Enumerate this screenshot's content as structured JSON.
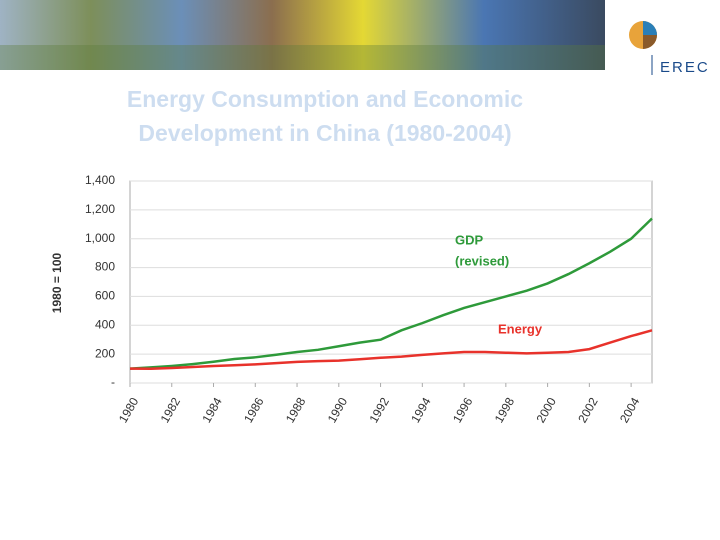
{
  "logo": "EREC",
  "chart_data": {
    "type": "line",
    "title_lines": [
      "Energy Consumption and Economic",
      "Development  in China (1980-2004)"
    ],
    "y_axis_label": "1980 = 100",
    "x": [
      1980,
      1981,
      1982,
      1983,
      1984,
      1985,
      1986,
      1987,
      1988,
      1989,
      1990,
      1991,
      1992,
      1993,
      1994,
      1995,
      1996,
      1997,
      1998,
      1999,
      2000,
      2001,
      2002,
      2003,
      2004,
      2005
    ],
    "series": [
      {
        "name": "GDP (revised)",
        "label_lines": [
          "GDP",
          "(revised)"
        ],
        "color": "#2e9a3a",
        "values": [
          100,
          108,
          118,
          131,
          147,
          166,
          178,
          196,
          215,
          230,
          255,
          280,
          300,
          365,
          415,
          470,
          520,
          560,
          600,
          640,
          690,
          755,
          830,
          910,
          1000,
          1140
        ]
      },
      {
        "name": "Energy",
        "label_lines": [
          "Energy"
        ],
        "color": "#e8322b",
        "values": [
          100,
          99,
          104,
          111,
          118,
          123,
          129,
          138,
          146,
          152,
          155,
          165,
          175,
          183,
          195,
          205,
          215,
          215,
          210,
          205,
          210,
          215,
          235,
          280,
          325,
          365
        ]
      }
    ],
    "xlim": [
      1980,
      2005
    ],
    "xticks": [
      1980,
      1982,
      1984,
      1986,
      1988,
      1990,
      1992,
      1994,
      1996,
      1998,
      2000,
      2002,
      2004
    ],
    "ylim": [
      0,
      1400
    ],
    "yticks": [
      {
        "value": 0,
        "label": "-"
      },
      200,
      400,
      600,
      800,
      {
        "value": 1000,
        "label": "1,000"
      },
      {
        "value": 1200,
        "label": "1,200"
      },
      {
        "value": 1400,
        "label": "1,400"
      }
    ],
    "grid": true
  }
}
